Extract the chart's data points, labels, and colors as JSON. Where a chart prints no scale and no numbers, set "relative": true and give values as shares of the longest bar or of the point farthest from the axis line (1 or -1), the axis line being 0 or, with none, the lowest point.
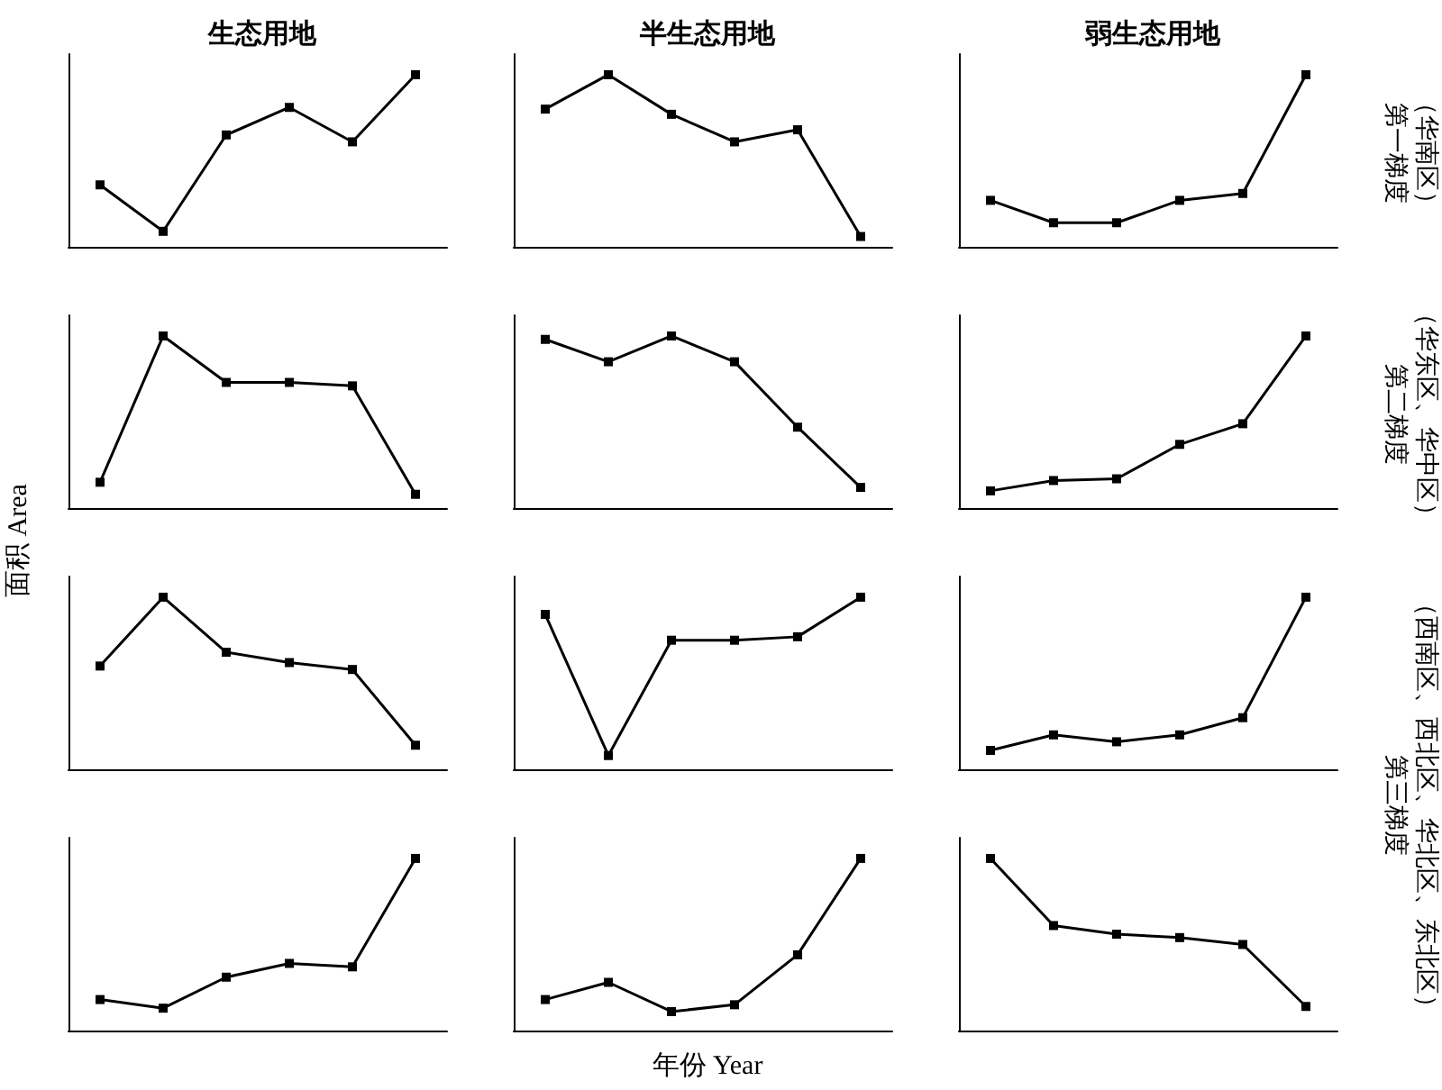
{
  "chart_data": [
    {
      "type": "line",
      "title": "生态用地",
      "relative": true,
      "categories": [
        null,
        null,
        null,
        null,
        null,
        null
      ],
      "series": [
        {
          "color": "#000000",
          "values": [
            0.36,
            0.09,
            0.65,
            0.81,
            0.61,
            1
          ]
        }
      ],
      "marker": "square"
    },
    {
      "type": "line",
      "title": "半生态用地",
      "relative": true,
      "categories": [
        null,
        null,
        null,
        null,
        null,
        null
      ],
      "series": [
        {
          "color": "#000000",
          "values": [
            0.8,
            1,
            0.77,
            0.61,
            0.68,
            0.06
          ]
        }
      ],
      "marker": "square"
    },
    {
      "type": "line",
      "title": "弱生态用地",
      "y2label": "第一梯度（华南区）",
      "relative": true,
      "categories": [
        null,
        null,
        null,
        null,
        null,
        null
      ],
      "series": [
        {
          "color": "#000000",
          "values": [
            0.27,
            0.14,
            0.14,
            0.27,
            0.31,
            1
          ]
        }
      ],
      "marker": "square"
    },
    {
      "type": "line",
      "ylabel": "面积 Area",
      "relative": true,
      "categories": [
        null,
        null,
        null,
        null,
        null,
        null
      ],
      "series": [
        {
          "color": "#000000",
          "values": [
            0.15,
            1,
            0.73,
            0.73,
            0.71,
            0.08
          ]
        }
      ],
      "marker": "square"
    },
    {
      "type": "line",
      "relative": true,
      "categories": [
        null,
        null,
        null,
        null,
        null,
        null
      ],
      "series": [
        {
          "color": "#000000",
          "values": [
            0.98,
            0.85,
            1,
            0.85,
            0.47,
            0.12
          ]
        }
      ],
      "marker": "square"
    },
    {
      "type": "line",
      "y2label": "第二梯度（华东区、华中区）",
      "relative": true,
      "categories": [
        null,
        null,
        null,
        null,
        null,
        null
      ],
      "series": [
        {
          "color": "#000000",
          "values": [
            0.1,
            0.16,
            0.17,
            0.37,
            0.49,
            1
          ]
        }
      ],
      "marker": "square"
    },
    {
      "type": "line",
      "relative": true,
      "categories": [
        null,
        null,
        null,
        null,
        null,
        null
      ],
      "series": [
        {
          "color": "#000000",
          "values": [
            0.6,
            1,
            0.68,
            0.62,
            0.58,
            0.14
          ]
        }
      ],
      "marker": "square"
    },
    {
      "type": "line",
      "relative": true,
      "categories": [
        null,
        null,
        null,
        null,
        null,
        null
      ],
      "series": [
        {
          "color": "#000000",
          "values": [
            0.9,
            0.08,
            0.75,
            0.75,
            0.77,
            1
          ]
        }
      ],
      "marker": "square"
    },
    {
      "type": "line",
      "y2label": "第三梯度（西南区、西北区、华北区、东北区）",
      "relative": true,
      "categories": [
        null,
        null,
        null,
        null,
        null,
        null
      ],
      "series": [
        {
          "color": "#000000",
          "values": [
            0.11,
            0.2,
            0.16,
            0.2,
            0.3,
            1
          ]
        }
      ],
      "marker": "square"
    },
    {
      "type": "line",
      "relative": true,
      "categories": [
        null,
        null,
        null,
        null,
        null,
        null
      ],
      "series": [
        {
          "color": "#000000",
          "values": [
            0.18,
            0.13,
            0.31,
            0.39,
            0.37,
            1
          ]
        }
      ],
      "marker": "square"
    },
    {
      "type": "line",
      "xlabel": "年份 Year",
      "relative": true,
      "categories": [
        null,
        null,
        null,
        null,
        null,
        null
      ],
      "series": [
        {
          "color": "#000000",
          "values": [
            0.18,
            0.28,
            0.11,
            0.15,
            0.44,
            1
          ]
        }
      ],
      "marker": "square"
    },
    {
      "type": "line",
      "relative": true,
      "categories": [
        null,
        null,
        null,
        null,
        null,
        null
      ],
      "series": [
        {
          "color": "#000000",
          "values": [
            1,
            0.61,
            0.56,
            0.54,
            0.5,
            0.14
          ]
        }
      ],
      "marker": "square"
    }
  ]
}
